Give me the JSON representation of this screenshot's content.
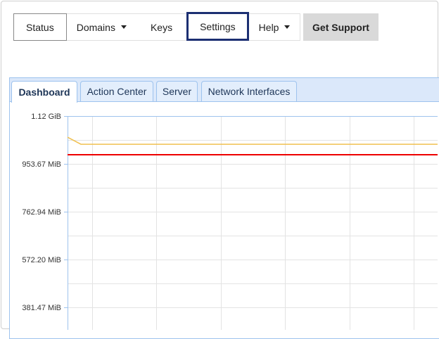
{
  "nav": {
    "items": [
      {
        "label": "Status"
      },
      {
        "label": "Domains",
        "dropdown": true
      },
      {
        "label": "Keys"
      },
      {
        "label": "Settings",
        "focused": true
      },
      {
        "label": "Help",
        "dropdown": true
      }
    ]
  },
  "support_button": "Get Support",
  "tabs": [
    {
      "label": "Dashboard",
      "active": true
    },
    {
      "label": "Action Center"
    },
    {
      "label": "Server"
    },
    {
      "label": "Network Interfaces"
    }
  ],
  "chart_data": {
    "type": "line",
    "y_ticks": [
      "1.12 GiB",
      "953.67 MiB",
      "762.94 MiB",
      "572.20 MiB",
      "381.47 MiB"
    ],
    "y_tick_values_mib": [
      1146.88,
      953.67,
      762.94,
      572.2,
      381.47
    ],
    "grid": true,
    "series": [
      {
        "color": "#f0c050",
        "values_mib": [
          1060,
          1032,
          1032,
          1032,
          1032,
          1032,
          1032,
          1032
        ]
      },
      {
        "color": "#ee0000",
        "values_mib": [
          990,
          990,
          990,
          990,
          990,
          990,
          990,
          990
        ]
      }
    ]
  }
}
